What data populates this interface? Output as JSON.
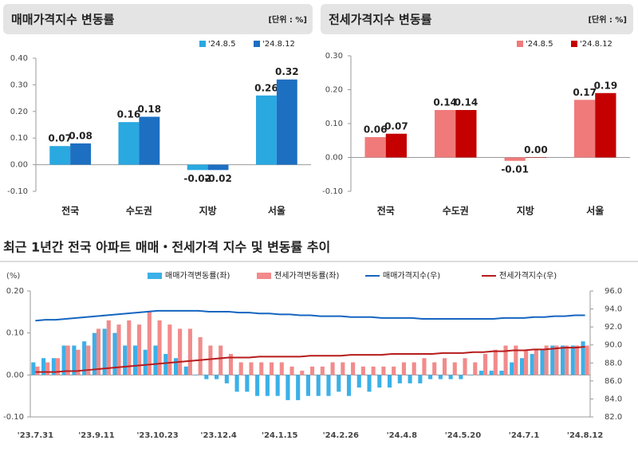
{
  "chart_data": [
    {
      "type": "bar",
      "title": "매매가격지수 변동률",
      "unit": "[단위 : %]",
      "categories": [
        "전국",
        "수도권",
        "지방",
        "서울"
      ],
      "series": [
        {
          "name": "'24.8.5",
          "color": "#2aa8e0",
          "values": [
            0.07,
            0.16,
            -0.02,
            0.26
          ],
          "value_labels": [
            "0.07",
            "0.16",
            "-0.02",
            "0.26"
          ]
        },
        {
          "name": "'24.8.12",
          "color": "#1d6fc2",
          "values": [
            0.08,
            0.18,
            -0.02,
            0.32
          ],
          "value_labels": [
            "0.08",
            "0.18",
            "-0.02",
            "0.32"
          ]
        }
      ],
      "ylim": [
        -0.1,
        0.4
      ],
      "yticks": [
        {
          "value": -0.1,
          "label": "-0.10"
        },
        {
          "value": 0,
          "label": "0.00"
        },
        {
          "value": 0.1,
          "label": "0.10"
        },
        {
          "value": 0.2,
          "label": "0.20"
        },
        {
          "value": 0.3,
          "label": "0.30"
        },
        {
          "value": 0.4,
          "label": "0.40"
        }
      ]
    },
    {
      "type": "bar",
      "title": "전세가격지수 변동률",
      "unit": "[단위 : %]",
      "categories": [
        "전국",
        "수도권",
        "지방",
        "서울"
      ],
      "series": [
        {
          "name": "'24.8.5",
          "color": "#f07a7a",
          "values": [
            0.06,
            0.14,
            -0.01,
            0.17
          ],
          "value_labels": [
            "0.06",
            "0.14",
            "-0.01",
            "0.17"
          ]
        },
        {
          "name": "'24.8.12",
          "color": "#c40000",
          "values": [
            0.07,
            0.14,
            0.0,
            0.19
          ],
          "value_labels": [
            "0.07",
            "0.14",
            "0.00",
            "0.19"
          ]
        }
      ],
      "ylim": [
        -0.1,
        0.3
      ],
      "yticks": [
        {
          "value": -0.1,
          "label": "-0.10"
        },
        {
          "value": 0,
          "label": "0.00"
        },
        {
          "value": 0.1,
          "label": "0.10"
        },
        {
          "value": 0.2,
          "label": "0.20"
        },
        {
          "value": 0.3,
          "label": "0.30"
        }
      ]
    },
    {
      "type": "combo",
      "title": "최근 1년간 전국 아파트 매매・전세가격 지수 및 변동률 추이",
      "y_label": "(%)",
      "categories": [
        "'23.7.31",
        null,
        null,
        null,
        null,
        null,
        "'23.9.11",
        null,
        null,
        null,
        null,
        null,
        "'23.10.23",
        null,
        null,
        null,
        null,
        null,
        "'23.12.4",
        null,
        null,
        null,
        null,
        null,
        "'24.1.15",
        null,
        null,
        null,
        null,
        null,
        "'24.2.26",
        null,
        null,
        null,
        null,
        null,
        "'24.4.8",
        null,
        null,
        null,
        null,
        null,
        "'24.5.20",
        null,
        null,
        null,
        null,
        null,
        "'24.7.1",
        null,
        null,
        null,
        null,
        null,
        "'24.8.12"
      ],
      "series": [
        {
          "name": "매매가격변동률(좌)",
          "type": "bar",
          "color": "#3cb0e8",
          "values": [
            0.03,
            0.04,
            0.04,
            0.07,
            0.07,
            0.08,
            0.1,
            0.11,
            0.1,
            0.07,
            0.07,
            0.06,
            0.07,
            0.05,
            0.04,
            0.02,
            0.0,
            -0.01,
            -0.01,
            -0.02,
            -0.04,
            -0.04,
            -0.05,
            -0.05,
            -0.05,
            -0.06,
            -0.06,
            -0.05,
            -0.05,
            -0.05,
            -0.04,
            -0.05,
            -0.03,
            -0.04,
            -0.03,
            -0.03,
            -0.02,
            -0.02,
            -0.02,
            -0.01,
            -0.01,
            -0.01,
            -0.01,
            0.0,
            0.01,
            0.01,
            0.01,
            0.03,
            0.04,
            0.05,
            0.06,
            0.07,
            0.07,
            0.07,
            0.08
          ]
        },
        {
          "name": "전세가격변동률(좌)",
          "type": "bar",
          "color": "#f28b8b",
          "values": [
            0.02,
            0.03,
            0.04,
            0.07,
            0.06,
            0.07,
            0.11,
            0.13,
            0.12,
            0.13,
            0.12,
            0.15,
            0.13,
            0.12,
            0.11,
            0.11,
            0.09,
            0.07,
            0.07,
            0.05,
            0.03,
            0.03,
            0.03,
            0.03,
            0.03,
            0.02,
            0.01,
            0.02,
            0.02,
            0.03,
            0.03,
            0.03,
            0.02,
            0.02,
            0.02,
            0.02,
            0.03,
            0.03,
            0.04,
            0.03,
            0.04,
            0.03,
            0.04,
            0.03,
            0.05,
            0.06,
            0.07,
            0.07,
            0.06,
            0.06,
            0.07,
            0.07,
            0.07,
            0.07,
            0.07
          ]
        },
        {
          "name": "매매가격지수(우)",
          "type": "line",
          "axis": "y2",
          "color": "#1565c0",
          "values": [
            92.7,
            92.8,
            92.8,
            92.9,
            93.0,
            93.1,
            93.2,
            93.3,
            93.4,
            93.5,
            93.6,
            93.7,
            93.8,
            93.8,
            93.8,
            93.8,
            93.8,
            93.7,
            93.7,
            93.7,
            93.6,
            93.6,
            93.5,
            93.5,
            93.4,
            93.4,
            93.3,
            93.3,
            93.2,
            93.2,
            93.2,
            93.1,
            93.1,
            93.1,
            93.0,
            93.0,
            93.0,
            93.0,
            92.9,
            92.9,
            92.9,
            92.9,
            92.9,
            92.9,
            92.9,
            92.9,
            93.0,
            93.0,
            93.0,
            93.1,
            93.1,
            93.2,
            93.2,
            93.3,
            93.3
          ]
        },
        {
          "name": "전세가격지수(우)",
          "type": "line",
          "axis": "y2",
          "color": "#b71c1c",
          "values": [
            87.0,
            87.0,
            87.0,
            87.1,
            87.1,
            87.2,
            87.3,
            87.4,
            87.5,
            87.6,
            87.7,
            87.8,
            87.9,
            88.0,
            88.1,
            88.2,
            88.3,
            88.4,
            88.5,
            88.6,
            88.6,
            88.6,
            88.7,
            88.7,
            88.7,
            88.7,
            88.7,
            88.8,
            88.8,
            88.8,
            88.8,
            88.9,
            88.9,
            88.9,
            88.9,
            89.0,
            89.0,
            89.0,
            89.0,
            89.0,
            89.1,
            89.1,
            89.1,
            89.2,
            89.2,
            89.3,
            89.3,
            89.4,
            89.4,
            89.5,
            89.5,
            89.6,
            89.7,
            89.7,
            89.8
          ]
        }
      ],
      "ylim": [
        -0.1,
        0.2
      ],
      "yticks": [
        {
          "value": -0.1,
          "label": "-0.10"
        },
        {
          "value": 0,
          "label": "0.00"
        },
        {
          "value": 0.1,
          "label": "0.10"
        },
        {
          "value": 0.2,
          "label": "0.20"
        }
      ],
      "y2lim": [
        82,
        96
      ],
      "y2ticks": [
        {
          "value": 82,
          "label": "82.0"
        },
        {
          "value": 84,
          "label": "84.0"
        },
        {
          "value": 86,
          "label": "86.0"
        },
        {
          "value": 88,
          "label": "88.0"
        },
        {
          "value": 90,
          "label": "90.0"
        },
        {
          "value": 92,
          "label": "92.0"
        },
        {
          "value": 94,
          "label": "94.0"
        },
        {
          "value": 96,
          "label": "96.0"
        }
      ]
    }
  ]
}
